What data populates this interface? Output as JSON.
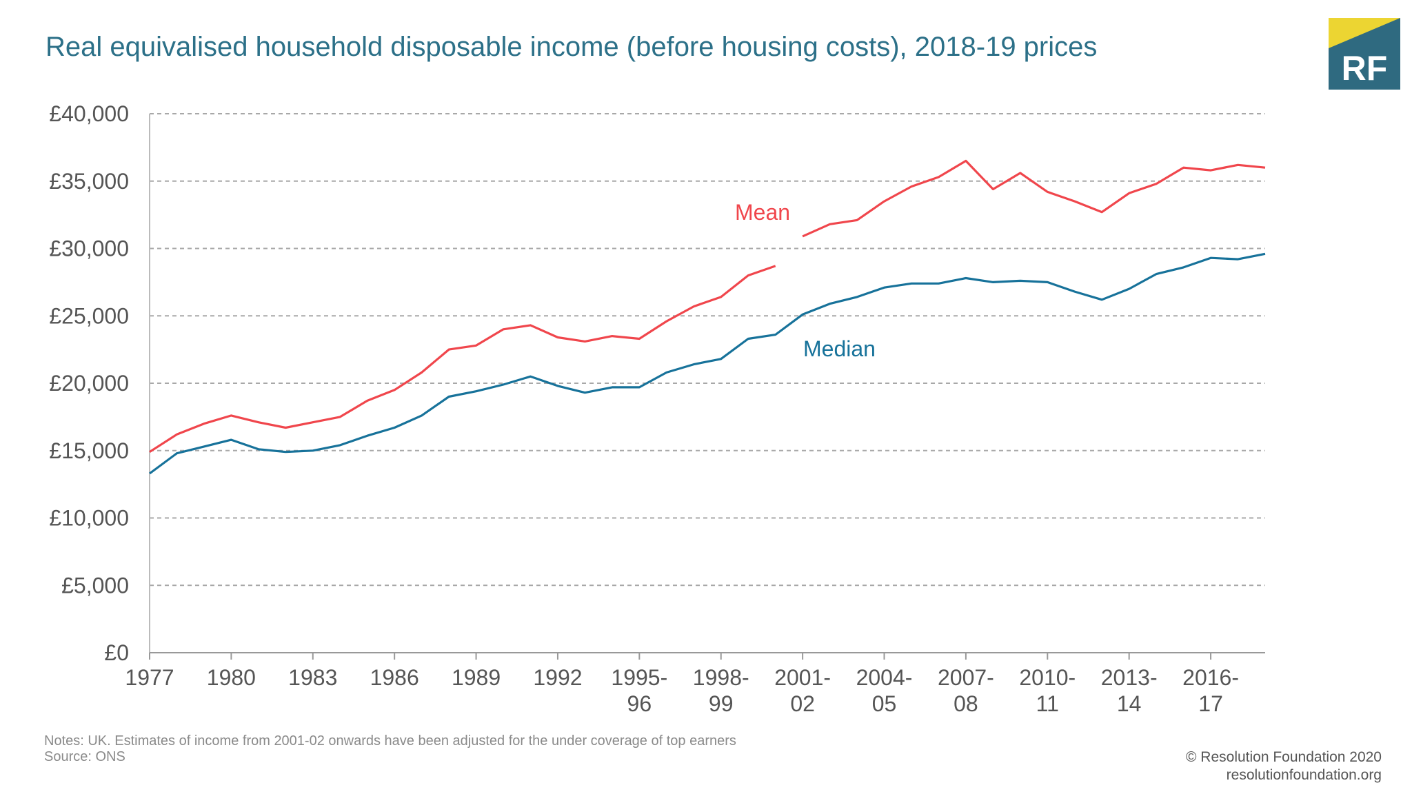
{
  "title": "Real equivalised household disposable income (before housing costs), 2018-19 prices",
  "logo": {
    "text": "RF",
    "colors": {
      "background": "#2f6a80",
      "accent": "#ecd532",
      "text": "#ffffff"
    }
  },
  "notes": "Notes:  UK. Estimates of income from 2001-02 onwards have been adjusted for the under coverage of top earners",
  "source": "Source: ONS",
  "credits": {
    "copyright": "© Resolution Foundation 2020",
    "website": "resolutionfoundation.org"
  },
  "chart_data": {
    "type": "line",
    "title": "Real equivalised household disposable income (before housing costs), 2018-19 prices",
    "xlabel": "",
    "ylabel": "",
    "ylim": [
      0,
      40000
    ],
    "yticks": [
      0,
      5000,
      10000,
      15000,
      20000,
      25000,
      30000,
      35000,
      40000
    ],
    "ytick_labels": [
      "£0",
      "£5,000",
      "£10,000",
      "£15,000",
      "£20,000",
      "£25,000",
      "£30,000",
      "£35,000",
      "£40,000"
    ],
    "grid": "horizontal dashed",
    "x": [
      "1977",
      "1978",
      "1979",
      "1980",
      "1981",
      "1982",
      "1983",
      "1984",
      "1985",
      "1986",
      "1987",
      "1988",
      "1989",
      "1990",
      "1991",
      "1992",
      "1993",
      "1994-95",
      "1995-96",
      "1996-97",
      "1997-98",
      "1998-99",
      "1999-00",
      "2000-01",
      "2001-02",
      "2002-03",
      "2003-04",
      "2004-05",
      "2005-06",
      "2006-07",
      "2007-08",
      "2008-09",
      "2009-10",
      "2010-11",
      "2011-12",
      "2012-13",
      "2013-14",
      "2014-15",
      "2015-16",
      "2016-17",
      "2017-18",
      "2018-19"
    ],
    "xtick_labels": [
      "1977",
      "1980",
      "1983",
      "1986",
      "1989",
      "1992",
      "1995-96",
      "1998-99",
      "2001-02",
      "2004-05",
      "2007-08",
      "2010-11",
      "2013-14",
      "2016-17"
    ],
    "series": [
      {
        "name": "Mean",
        "color": "#f0464c",
        "discontinuity_after": "2000-01",
        "values": [
          14900,
          16200,
          17000,
          17600,
          17100,
          16700,
          17100,
          17500,
          18700,
          19500,
          20800,
          22500,
          22800,
          24000,
          24300,
          23400,
          23100,
          23500,
          23300,
          24600,
          25700,
          26400,
          28000,
          28700,
          30900,
          31800,
          32100,
          33500,
          34600,
          35300,
          36500,
          34400,
          35600,
          34200,
          33500,
          32700,
          34100,
          34800,
          36000,
          35800,
          36200,
          36000
        ]
      },
      {
        "name": "Median",
        "color": "#17729a",
        "values": [
          13300,
          14800,
          15300,
          15800,
          15100,
          14900,
          15000,
          15400,
          16100,
          16700,
          17600,
          19000,
          19400,
          19900,
          20500,
          19800,
          19300,
          19700,
          19700,
          20800,
          21400,
          21800,
          23300,
          23600,
          25100,
          25900,
          26400,
          27100,
          27400,
          27400,
          27800,
          27500,
          27600,
          27500,
          26800,
          26200,
          27000,
          28100,
          28600,
          29300,
          29200,
          29600
        ]
      }
    ]
  }
}
